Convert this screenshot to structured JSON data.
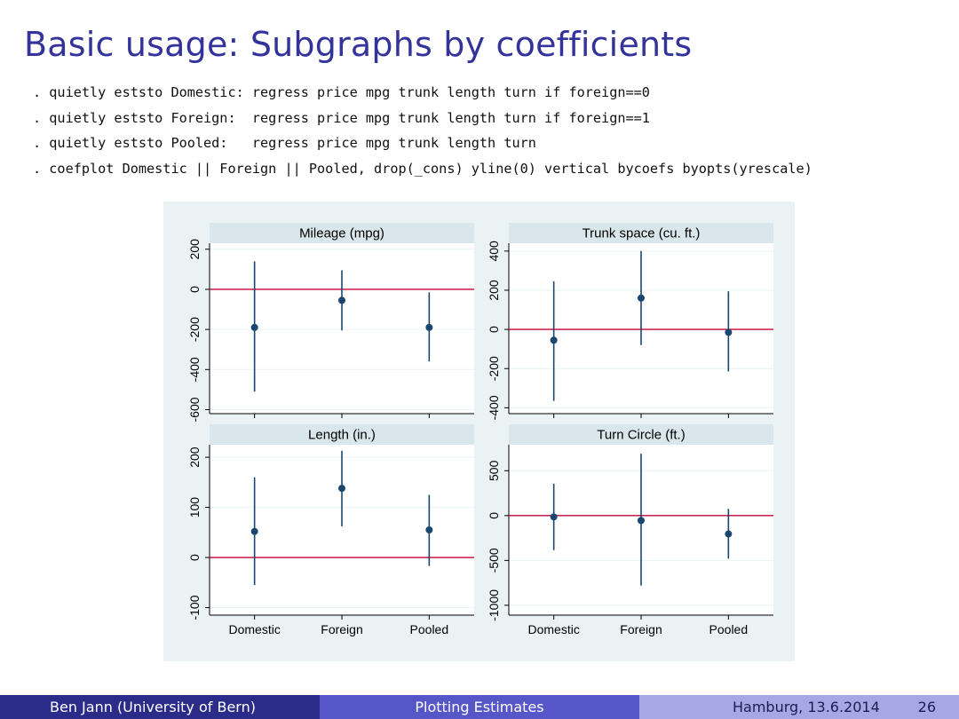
{
  "slide": {
    "title": "Basic usage: Subgraphs by coefficients",
    "code_lines": [
      ". quietly eststo Domestic: regress price mpg trunk length turn if foreign==0",
      ". quietly eststo Foreign:  regress price mpg trunk length turn if foreign==1",
      ". quietly eststo Pooled:   regress price mpg trunk length turn",
      ". coefplot Domestic || Foreign || Pooled, drop(_cons) yline(0) vertical bycoefs byopts(yrescale)"
    ]
  },
  "footer": {
    "author": "Ben Jann  (University of Bern)",
    "talk": "Plotting Estimates",
    "date": "Hamburg, 13.6.2014",
    "page": "26"
  },
  "colors": {
    "title": "#33339b",
    "marker": "#1a476f",
    "refline": "#c10534",
    "panel_header": "#d9e6eb",
    "figure_bg": "#eaf2f3"
  },
  "chart_data": [
    {
      "type": "scatter",
      "title": "Mileage (mpg)",
      "categories": [
        "Domestic",
        "Foreign",
        "Pooled"
      ],
      "yticks": [
        200,
        0,
        -200,
        -400,
        -600
      ],
      "ylim": [
        -620,
        230
      ],
      "estimates": [
        -190,
        -55,
        -190
      ],
      "ci_low": [
        -510,
        -205,
        -360
      ],
      "ci_high": [
        140,
        95,
        -15
      ],
      "refline": 0,
      "grid": true
    },
    {
      "type": "scatter",
      "title": "Trunk space (cu. ft.)",
      "categories": [
        "Domestic",
        "Foreign",
        "Pooled"
      ],
      "yticks": [
        400,
        200,
        0,
        -200,
        -400
      ],
      "ylim": [
        -430,
        440
      ],
      "estimates": [
        -55,
        160,
        -15
      ],
      "ci_low": [
        -365,
        -80,
        -215
      ],
      "ci_high": [
        245,
        400,
        195
      ],
      "refline": 0,
      "grid": true
    },
    {
      "type": "scatter",
      "title": "Length (in.)",
      "categories": [
        "Domestic",
        "Foreign",
        "Pooled"
      ],
      "yticks": [
        200,
        100,
        0,
        -100
      ],
      "ylim": [
        -115,
        225
      ],
      "estimates": [
        52,
        138,
        55
      ],
      "ci_low": [
        -55,
        62,
        -17
      ],
      "ci_high": [
        160,
        213,
        125
      ],
      "refline": 0,
      "grid": true
    },
    {
      "type": "scatter",
      "title": "Turn Circle (ft.)",
      "categories": [
        "Domestic",
        "Foreign",
        "Pooled"
      ],
      "yticks": [
        500,
        0,
        -500,
        -1000
      ],
      "ylim": [
        -1110,
        790
      ],
      "estimates": [
        -15,
        -55,
        -205
      ],
      "ci_low": [
        -385,
        -780,
        -480
      ],
      "ci_high": [
        355,
        690,
        75
      ],
      "refline": 0,
      "grid": true
    }
  ]
}
